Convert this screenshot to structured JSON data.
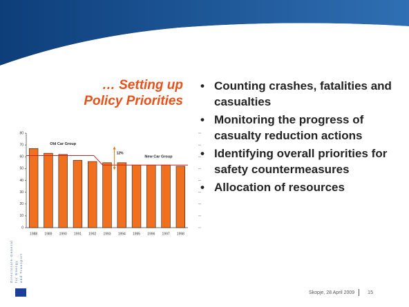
{
  "slide": {
    "title_lines": [
      "… Setting up",
      "Policy Priorities"
    ],
    "bullets": [
      "Counting crashes, fatalities and casualties",
      "Monitoring the progress of casualty reduction actions",
      "Identifying  overall priorities for safety countermeasures",
      "Allocation of resources"
    ],
    "footer": {
      "place_date": "Skopje, 28 April 2009",
      "page": "15"
    },
    "logo_lines": [
      "Directorate-General",
      "for Energy",
      "and Transport"
    ]
  },
  "chart_data": {
    "type": "bar",
    "categories": [
      "1988",
      "1989",
      "1990",
      "1991",
      "1992",
      "1993",
      "1994",
      "1995",
      "1996",
      "1997",
      "1998"
    ],
    "values": [
      67,
      63,
      62,
      57,
      56,
      55,
      55,
      53,
      53,
      53,
      52
    ],
    "color": "#f07020",
    "ylim": [
      0,
      80
    ],
    "yticks": [
      0,
      10,
      20,
      30,
      40,
      50,
      60,
      70,
      80
    ],
    "group_levels": [
      61,
      53
    ],
    "annotations": [
      "Old Car Group",
      "New Car Group",
      "12%"
    ]
  }
}
